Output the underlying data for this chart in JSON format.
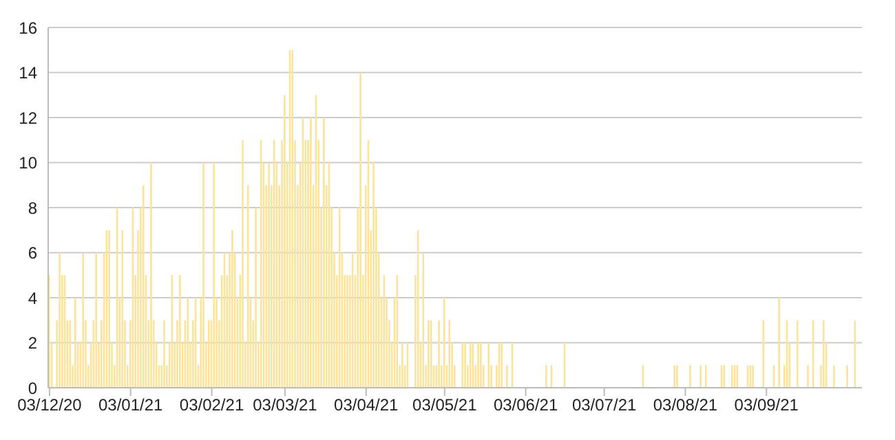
{
  "chart_data": {
    "type": "bar",
    "categories": [
      "03/12/20",
      null,
      null,
      null,
      null,
      null,
      null,
      null,
      null,
      null,
      null,
      null,
      null,
      null,
      null,
      null,
      null,
      null,
      null,
      null,
      null,
      null,
      null,
      null,
      null,
      null,
      null,
      null,
      null,
      null,
      null,
      "03/01/21",
      null,
      null,
      null,
      null,
      null,
      null,
      null,
      null,
      null,
      null,
      null,
      null,
      null,
      null,
      null,
      null,
      null,
      null,
      null,
      null,
      null,
      null,
      null,
      null,
      null,
      null,
      null,
      null,
      null,
      null,
      "03/02/21",
      null,
      null,
      null,
      null,
      null,
      null,
      null,
      null,
      null,
      null,
      null,
      null,
      null,
      null,
      null,
      null,
      null,
      null,
      null,
      null,
      null,
      null,
      null,
      null,
      null,
      null,
      null,
      "03/03/21",
      null,
      null,
      null,
      null,
      null,
      null,
      null,
      null,
      null,
      null,
      null,
      null,
      null,
      null,
      null,
      null,
      null,
      null,
      null,
      null,
      null,
      null,
      null,
      null,
      null,
      null,
      null,
      null,
      null,
      null,
      "03/04/21",
      null,
      null,
      null,
      null,
      null,
      null,
      null,
      null,
      null,
      null,
      null,
      null,
      null,
      null,
      null,
      null,
      null,
      null,
      null,
      null,
      null,
      null,
      null,
      null,
      null,
      null,
      null,
      null,
      null,
      "03/05/21",
      null,
      null,
      null,
      null,
      null,
      null,
      null,
      null,
      null,
      null,
      null,
      null,
      null,
      null,
      null,
      null,
      null,
      null,
      null,
      null,
      null,
      null,
      null,
      null,
      null,
      null,
      null,
      null,
      null,
      null,
      "03/06/21",
      null,
      null,
      null,
      null,
      null,
      null,
      null,
      null,
      null,
      null,
      null,
      null,
      null,
      null,
      null,
      null,
      null,
      null,
      null,
      null,
      null,
      null,
      null,
      null,
      null,
      null,
      null,
      null,
      null,
      "03/07/21",
      null,
      null,
      null,
      null,
      null,
      null,
      null,
      null,
      null,
      null,
      null,
      null,
      null,
      null,
      null,
      null,
      null,
      null,
      null,
      null,
      null,
      null,
      null,
      null,
      null,
      null,
      null,
      null,
      null,
      null,
      "03/08/21",
      null,
      null,
      null,
      null,
      null,
      null,
      null,
      null,
      null,
      null,
      null,
      null,
      null,
      null,
      null,
      null,
      null,
      null,
      null,
      null,
      null,
      null,
      null,
      null,
      null,
      null,
      null,
      null,
      null,
      null,
      "03/09/21",
      null,
      null,
      null,
      null,
      null,
      null,
      null,
      null,
      null,
      null,
      null,
      null,
      null,
      null,
      null,
      null,
      null,
      null,
      null,
      null,
      null,
      null,
      null,
      null,
      null,
      null,
      null,
      null,
      null,
      null,
      null,
      null,
      null,
      null
    ],
    "values": [
      5,
      2,
      0,
      3,
      6,
      5,
      5,
      3,
      3,
      1,
      4,
      2,
      2,
      6,
      3,
      1,
      2,
      3,
      6,
      2,
      3,
      6,
      7,
      7,
      2,
      1,
      8,
      4,
      7,
      3,
      1,
      3,
      8,
      5,
      7,
      8,
      9,
      5,
      3,
      10,
      3,
      2,
      1,
      1,
      3,
      1,
      2,
      5,
      2,
      3,
      5,
      2,
      3,
      4,
      2,
      3,
      4,
      1,
      4,
      10,
      2,
      3,
      3,
      10,
      4,
      3,
      5,
      6,
      5,
      6,
      7,
      6,
      4,
      5,
      11,
      2,
      9,
      4,
      3,
      8,
      2,
      11,
      10,
      9,
      10,
      9,
      11,
      10,
      9,
      11,
      13,
      10,
      15,
      15,
      11,
      9,
      10,
      12,
      11,
      11,
      12,
      9,
      13,
      11,
      8,
      12,
      9,
      10,
      8,
      6,
      5,
      8,
      6,
      5,
      5,
      5,
      6,
      5,
      8,
      14,
      5,
      9,
      11,
      7,
      10,
      8,
      6,
      4,
      5,
      4,
      3,
      2,
      4,
      5,
      1,
      2,
      1,
      2,
      0,
      0,
      5,
      7,
      2,
      6,
      1,
      3,
      3,
      1,
      1,
      3,
      1,
      4,
      1,
      3,
      2,
      1,
      0,
      0,
      2,
      2,
      1,
      2,
      2,
      1,
      2,
      2,
      1,
      0,
      2,
      1,
      0,
      1,
      2,
      2,
      0,
      1,
      0,
      2,
      0,
      0,
      0,
      0,
      0,
      0,
      0,
      0,
      0,
      0,
      0,
      0,
      1,
      0,
      1,
      0,
      0,
      0,
      0,
      2,
      0,
      0,
      0,
      0,
      0,
      0,
      0,
      0,
      0,
      0,
      0,
      0,
      0,
      0,
      0,
      0,
      0,
      0,
      0,
      0,
      0,
      0,
      0,
      0,
      0,
      0,
      0,
      0,
      0,
      1,
      0,
      0,
      0,
      0,
      0,
      0,
      0,
      0,
      0,
      0,
      0,
      1,
      1,
      0,
      0,
      0,
      0,
      1,
      0,
      0,
      0,
      1,
      0,
      1,
      0,
      0,
      0,
      0,
      0,
      1,
      1,
      0,
      0,
      1,
      1,
      1,
      0,
      0,
      0,
      1,
      1,
      1,
      0,
      0,
      0,
      3,
      0,
      0,
      0,
      1,
      0,
      4,
      0,
      1,
      3,
      2,
      0,
      0,
      3,
      0,
      0,
      0,
      1,
      0,
      3,
      0,
      0,
      1,
      3,
      2,
      0,
      0,
      1,
      0,
      0,
      0,
      0,
      1,
      0,
      0,
      3
    ],
    "color": "#fbe39a",
    "ylim": [
      0,
      16
    ],
    "yticks": [
      0,
      2,
      4,
      6,
      8,
      10,
      12,
      14,
      16
    ],
    "grid": "y"
  }
}
